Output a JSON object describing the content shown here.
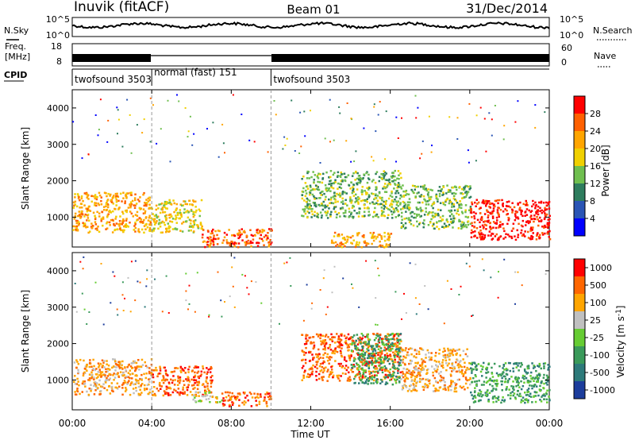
{
  "header": {
    "station": "Inuvik (fitACF)",
    "beam": "Beam 01",
    "date": "31/Dec/2014"
  },
  "summary_panels": {
    "nsky_label": "N.Sky",
    "nsearch_label": "N.Search",
    "freq_label_1": "Freq.",
    "freq_label_2": "[MHz]",
    "nave_label": "Nave",
    "cpid_label": "CPID",
    "noise_left_ticks": [
      "10^5",
      "10^0"
    ],
    "noise_right_ticks": [
      "10^5",
      "10^0"
    ],
    "freq_left_ticks": [
      "18",
      "8"
    ],
    "freq_right_ticks": [
      "60",
      "0"
    ],
    "cpid_segments": [
      {
        "label": "twofsound 3503",
        "start_h": 0,
        "end_h": 4
      },
      {
        "label": "normal (fast) 151",
        "start_h": 4,
        "end_h": 10
      },
      {
        "label": "twofsound 3503",
        "start_h": 10,
        "end_h": 24
      }
    ]
  },
  "x_axis": {
    "label": "Time UT",
    "ticks": [
      "00:00",
      "04:00",
      "08:00",
      "12:00",
      "16:00",
      "20:00",
      "00:00"
    ],
    "tick_hours": [
      0,
      4,
      8,
      12,
      16,
      20,
      24
    ]
  },
  "chart_data": [
    {
      "type": "heatmap",
      "name": "power",
      "ylabel": "Slant Range [km]",
      "xlabel": "Time UT",
      "xlim_hours": [
        0,
        24
      ],
      "ylim": [
        180,
        4500
      ],
      "yticks": [
        1000,
        2000,
        3000,
        4000
      ],
      "colorbar": {
        "label": "Power [dB]",
        "ticks": [
          "28",
          "24",
          "20",
          "16",
          "12",
          "8",
          "4"
        ],
        "range": [
          0,
          30
        ],
        "colors": [
          "#0000ff",
          "#2a55b5",
          "#2e7d5e",
          "#6fbf4f",
          "#f0d000",
          "#ffa500",
          "#ff6000",
          "#ff0000"
        ]
      },
      "echo_regions": [
        {
          "t": [
            0.0,
            4.0
          ],
          "r": [
            600,
            1700
          ],
          "level": 22
        },
        {
          "t": [
            4.0,
            6.5
          ],
          "r": [
            600,
            1500
          ],
          "level": 18
        },
        {
          "t": [
            6.5,
            10.0
          ],
          "r": [
            200,
            700
          ],
          "level": 24
        },
        {
          "t": [
            11.5,
            16.5
          ],
          "r": [
            1000,
            2300
          ],
          "level": 12
        },
        {
          "t": [
            13.0,
            16.0
          ],
          "r": [
            200,
            600
          ],
          "level": 22
        },
        {
          "t": [
            16.5,
            20.0
          ],
          "r": [
            700,
            1900
          ],
          "level": 14
        },
        {
          "t": [
            20.0,
            24.0
          ],
          "r": [
            400,
            1500
          ],
          "level": 28
        }
      ]
    },
    {
      "type": "heatmap",
      "name": "velocity",
      "ylabel": "Slant Range [km]",
      "xlabel": "Time UT",
      "xlim_hours": [
        0,
        24
      ],
      "ylim": [
        180,
        4500
      ],
      "yticks": [
        1000,
        2000,
        3000,
        4000
      ],
      "colorbar": {
        "label": "Velocity [m s^-1]",
        "ticks": [
          "1000",
          "500",
          "100",
          "25",
          "-25",
          "-100",
          "-500",
          "-1000"
        ],
        "colors": [
          "#1c3d9c",
          "#2d7a7a",
          "#3a9a5a",
          "#66cc33",
          "#c0c0c0",
          "#ffa500",
          "#ff6600",
          "#ff0000"
        ]
      },
      "echo_regions": [
        {
          "t": [
            0.0,
            4.0
          ],
          "r": [
            600,
            1600
          ],
          "level": "100"
        },
        {
          "t": [
            4.0,
            7.0
          ],
          "r": [
            600,
            1400
          ],
          "level": "500"
        },
        {
          "t": [
            6.0,
            7.5
          ],
          "r": [
            400,
            700
          ],
          "level": "25"
        },
        {
          "t": [
            7.5,
            10.0
          ],
          "r": [
            300,
            700
          ],
          "level": "500"
        },
        {
          "t": [
            11.5,
            16.5
          ],
          "r": [
            1000,
            2300
          ],
          "level": "500"
        },
        {
          "t": [
            14.0,
            16.5
          ],
          "r": [
            900,
            2300
          ],
          "level": "-100"
        },
        {
          "t": [
            16.5,
            20.0
          ],
          "r": [
            700,
            1900
          ],
          "level": "100"
        },
        {
          "t": [
            20.0,
            24.0
          ],
          "r": [
            400,
            1500
          ],
          "level": "-100"
        }
      ]
    }
  ]
}
